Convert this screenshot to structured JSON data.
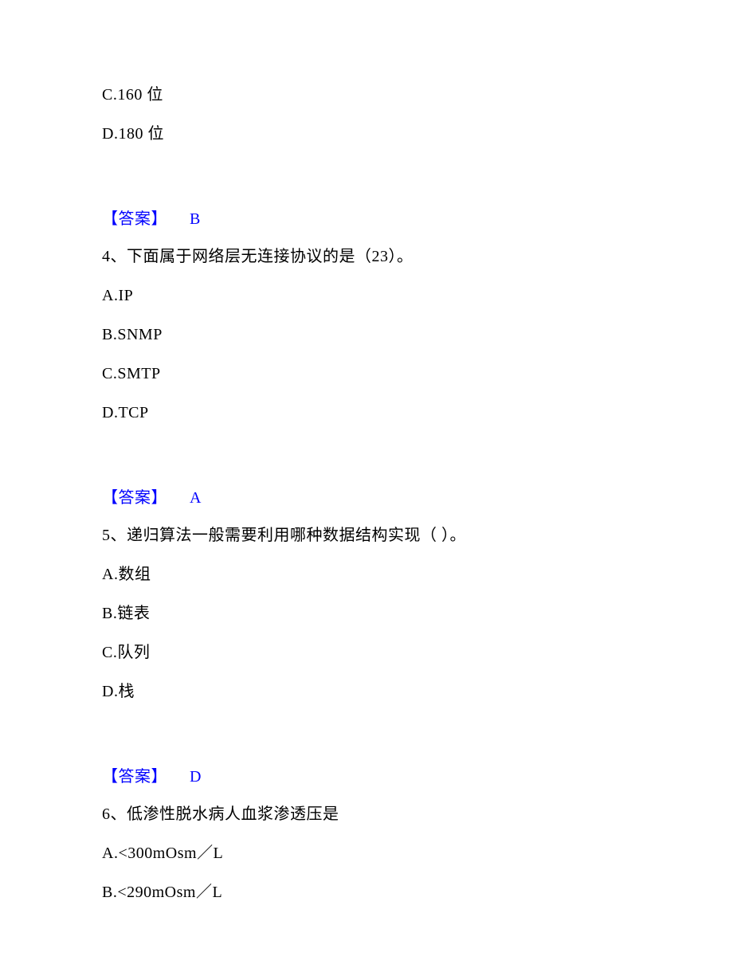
{
  "colors": {
    "text": "#000000",
    "answer": "#0000ff",
    "background": "#ffffff"
  },
  "typography": {
    "font_family": "SimSun",
    "font_size_pt": 15,
    "line_height": 1.4
  },
  "q3": {
    "opt_c": "C.160 位",
    "opt_d": "D.180 位",
    "answer_label": "【答案】",
    "answer_value": "B"
  },
  "q4": {
    "stem": "4、下面属于网络层无连接协议的是（23）。",
    "opt_a": "A.IP",
    "opt_b": "B.SNMP",
    "opt_c": "C.SMTP",
    "opt_d": "D.TCP",
    "answer_label": "【答案】",
    "answer_value": "A"
  },
  "q5": {
    "stem": "5、递归算法一般需要利用哪种数据结构实现（ ）。",
    "opt_a": "A.数组",
    "opt_b": "B.链表",
    "opt_c": "C.队列",
    "opt_d": "D.栈",
    "answer_label": "【答案】",
    "answer_value": "D"
  },
  "q6": {
    "stem": "6、低渗性脱水病人血浆渗透压是",
    "opt_a": "A.<300mOsm／L",
    "opt_b": "B.<290mOsm／L"
  }
}
